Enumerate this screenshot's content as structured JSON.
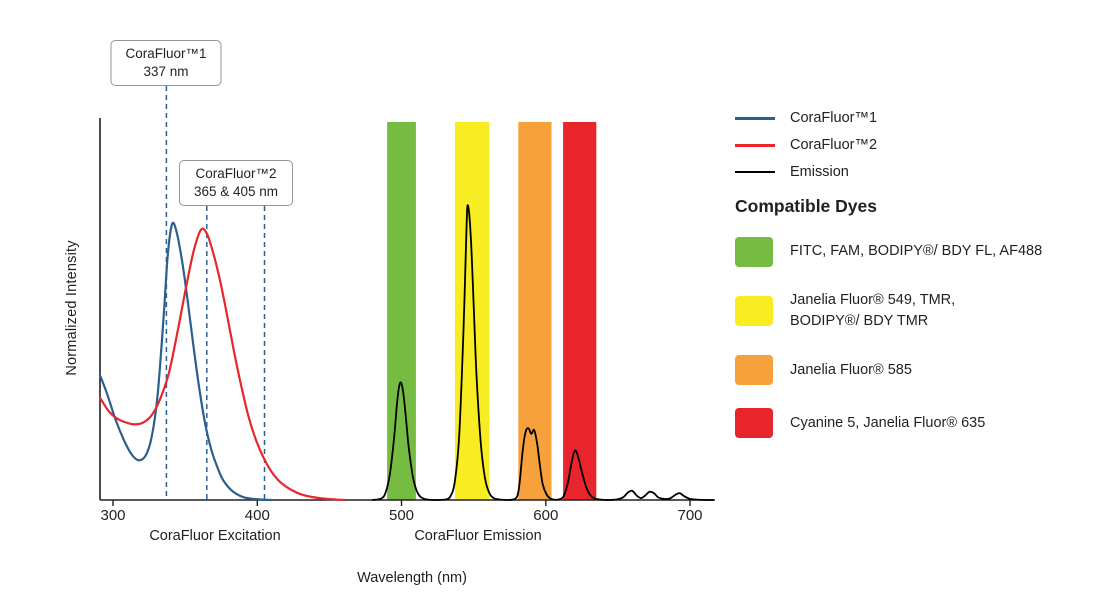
{
  "chart_data": {
    "type": "line",
    "title": "",
    "xlabel": "Wavelength (nm)",
    "ylabel": "Normalized Intensity",
    "xlim": [
      291,
      718
    ],
    "ylim": [
      0,
      1.05
    ],
    "x_ticks": [
      300,
      400,
      500,
      600,
      700
    ],
    "grid": false,
    "legend_position": "right",
    "region_labels": [
      "CoraFluor Excitation",
      "CoraFluor Emission"
    ],
    "marker_color": "#2a6099",
    "annotations": [
      {
        "line1": "CoraFluor™1",
        "line2": "337 nm",
        "marker_wavelengths": [
          337
        ]
      },
      {
        "line1": "CoraFluor™2",
        "line2": "365 & 405 nm",
        "marker_wavelengths": [
          365,
          405
        ]
      }
    ],
    "bands": [
      {
        "name": "green",
        "color": "#76bc43",
        "from": 490,
        "to": 510
      },
      {
        "name": "yellow",
        "color": "#f8ec22",
        "from": 537,
        "to": 561
      },
      {
        "name": "orange",
        "color": "#f6a13c",
        "from": 581,
        "to": 604
      },
      {
        "name": "red",
        "color": "#e8252b",
        "from": 612,
        "to": 635
      }
    ],
    "series": [
      {
        "name": "CoraFluor™1",
        "color": "#2a5f8e",
        "points": [
          [
            291,
            0.33
          ],
          [
            296,
            0.28
          ],
          [
            302,
            0.21
          ],
          [
            308,
            0.155
          ],
          [
            313,
            0.12
          ],
          [
            318,
            0.105
          ],
          [
            323,
            0.12
          ],
          [
            327,
            0.17
          ],
          [
            331,
            0.28
          ],
          [
            335,
            0.48
          ],
          [
            338,
            0.65
          ],
          [
            341,
            0.73
          ],
          [
            344,
            0.71
          ],
          [
            348,
            0.63
          ],
          [
            352,
            0.52
          ],
          [
            356,
            0.4
          ],
          [
            360,
            0.29
          ],
          [
            364,
            0.2
          ],
          [
            368,
            0.135
          ],
          [
            372,
            0.09
          ],
          [
            376,
            0.055
          ],
          [
            381,
            0.03
          ],
          [
            386,
            0.015
          ],
          [
            391,
            0.007
          ],
          [
            397,
            0.003
          ],
          [
            403,
            0.001
          ],
          [
            410,
            0.0
          ]
        ]
      },
      {
        "name": "CoraFluor™2",
        "color": "#e8262b",
        "points": [
          [
            291,
            0.27
          ],
          [
            297,
            0.235
          ],
          [
            303,
            0.215
          ],
          [
            309,
            0.205
          ],
          [
            315,
            0.2
          ],
          [
            321,
            0.205
          ],
          [
            327,
            0.225
          ],
          [
            333,
            0.27
          ],
          [
            339,
            0.34
          ],
          [
            345,
            0.45
          ],
          [
            351,
            0.57
          ],
          [
            356,
            0.66
          ],
          [
            361,
            0.715
          ],
          [
            365,
            0.705
          ],
          [
            369,
            0.66
          ],
          [
            374,
            0.585
          ],
          [
            379,
            0.49
          ],
          [
            384,
            0.39
          ],
          [
            389,
            0.3
          ],
          [
            394,
            0.22
          ],
          [
            399,
            0.16
          ],
          [
            404,
            0.115
          ],
          [
            409,
            0.08
          ],
          [
            414,
            0.055
          ],
          [
            419,
            0.038
          ],
          [
            425,
            0.024
          ],
          [
            431,
            0.014
          ],
          [
            438,
            0.008
          ],
          [
            445,
            0.004
          ],
          [
            452,
            0.002
          ],
          [
            460,
            0.0
          ]
        ]
      },
      {
        "name": "Emission",
        "color": "#000000",
        "points": [
          [
            480,
            0
          ],
          [
            486,
            0.004
          ],
          [
            489,
            0.02
          ],
          [
            492,
            0.07
          ],
          [
            495,
            0.17
          ],
          [
            497,
            0.26
          ],
          [
            499,
            0.31
          ],
          [
            501,
            0.29
          ],
          [
            503,
            0.22
          ],
          [
            505,
            0.14
          ],
          [
            508,
            0.06
          ],
          [
            511,
            0.02
          ],
          [
            514,
            0.006
          ],
          [
            518,
            0.001
          ],
          [
            524,
            0
          ],
          [
            530,
            0.001
          ],
          [
            534,
            0.01
          ],
          [
            537,
            0.05
          ],
          [
            540,
            0.17
          ],
          [
            543,
            0.45
          ],
          [
            545,
            0.71
          ],
          [
            546,
            0.78
          ],
          [
            548,
            0.7
          ],
          [
            550,
            0.52
          ],
          [
            552,
            0.33
          ],
          [
            555,
            0.15
          ],
          [
            558,
            0.055
          ],
          [
            561,
            0.018
          ],
          [
            564,
            0.005
          ],
          [
            569,
            0.001
          ],
          [
            575,
            0
          ],
          [
            580,
            0.008
          ],
          [
            582,
            0.05
          ],
          [
            584,
            0.13
          ],
          [
            586,
            0.18
          ],
          [
            588,
            0.19
          ],
          [
            590,
            0.175
          ],
          [
            592,
            0.185
          ],
          [
            594,
            0.15
          ],
          [
            596,
            0.09
          ],
          [
            598,
            0.04
          ],
          [
            601,
            0.012
          ],
          [
            604,
            0.003
          ],
          [
            608,
            0.001
          ],
          [
            612,
            0.008
          ],
          [
            615,
            0.04
          ],
          [
            618,
            0.1
          ],
          [
            620,
            0.13
          ],
          [
            622,
            0.12
          ],
          [
            625,
            0.075
          ],
          [
            628,
            0.035
          ],
          [
            631,
            0.012
          ],
          [
            634,
            0.004
          ],
          [
            638,
            0.001
          ],
          [
            644,
            0
          ],
          [
            650,
            0.002
          ],
          [
            654,
            0.008
          ],
          [
            657,
            0.02
          ],
          [
            660,
            0.024
          ],
          [
            663,
            0.012
          ],
          [
            666,
            0.005
          ],
          [
            669,
            0.012
          ],
          [
            672,
            0.022
          ],
          [
            675,
            0.018
          ],
          [
            678,
            0.007
          ],
          [
            682,
            0.003
          ],
          [
            686,
            0.004
          ],
          [
            690,
            0.014
          ],
          [
            693,
            0.018
          ],
          [
            696,
            0.01
          ],
          [
            700,
            0.003
          ],
          [
            705,
            0.001
          ],
          [
            712,
            0
          ],
          [
            716,
            0
          ]
        ]
      }
    ]
  },
  "legend": {
    "series": [
      {
        "label": "CoraFluor™1",
        "color": "#2a5f8e"
      },
      {
        "label": "CoraFluor™2",
        "color": "#e8262b"
      },
      {
        "label": "Emission",
        "color": "#000000"
      }
    ],
    "dyes_heading": "Compatible Dyes",
    "dyes": [
      {
        "label": "FITC, FAM, BODIPY®/ BDY FL, AF488",
        "color": "#76bc43"
      },
      {
        "label": "Janelia Fluor® 549, TMR,\nBODIPY®/ BDY TMR",
        "color": "#f8ec22"
      },
      {
        "label": "Janelia Fluor® 585",
        "color": "#f6a13c"
      },
      {
        "label": "Cyanine 5, Janelia Fluor® 635",
        "color": "#e8252b"
      }
    ]
  }
}
